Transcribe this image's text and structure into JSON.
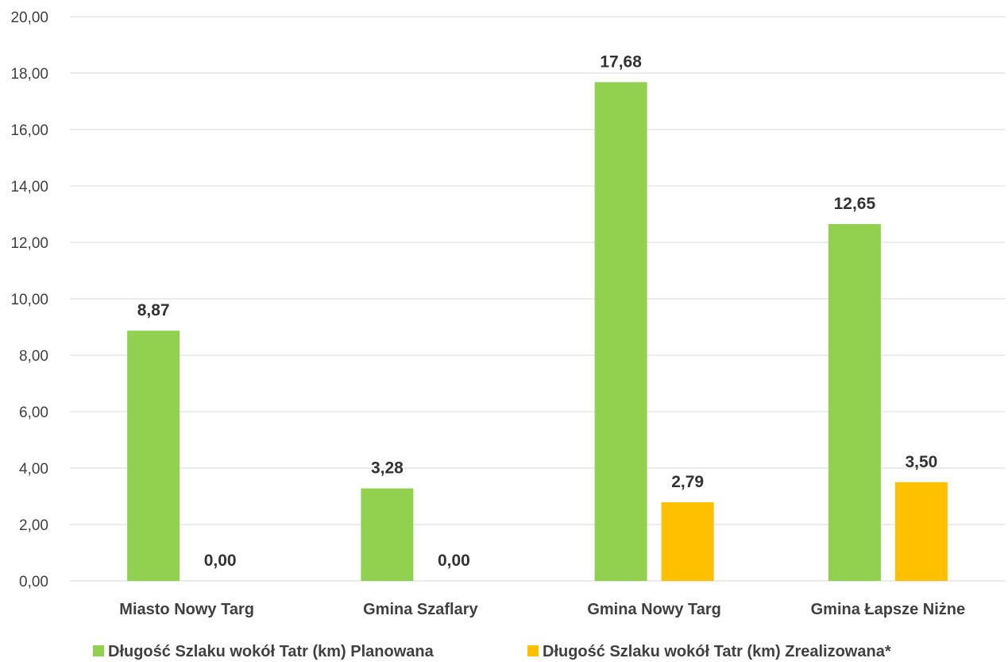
{
  "chart_data": {
    "type": "bar",
    "categories": [
      "Miasto Nowy Targ",
      "Gmina Szaflary",
      "Gmina Nowy Targ",
      "Gmina Łapsze Niżne"
    ],
    "series": [
      {
        "name": "Długość Szlaku wokół Tatr (km) Planowana",
        "color": "#92d050",
        "values": [
          8.87,
          3.28,
          17.68,
          12.65
        ],
        "labels": [
          "8,87",
          "3,28",
          "17,68",
          "12,65"
        ]
      },
      {
        "name": "Długość Szlaku wokół Tatr (km) Zrealizowana*",
        "color": "#ffc000",
        "values": [
          0.0,
          0.0,
          2.79,
          3.5
        ],
        "labels": [
          "0,00",
          "0,00",
          "2,79",
          "3,50"
        ]
      }
    ],
    "ylim": [
      0,
      20
    ],
    "yticks": [
      "0,00",
      "2,00",
      "4,00",
      "6,00",
      "8,00",
      "10,00",
      "12,00",
      "14,00",
      "16,00",
      "18,00",
      "20,00"
    ],
    "grid": true,
    "gridColor": "#d9d9d9",
    "legend_position": "bottom",
    "title": "",
    "xlabel": "",
    "ylabel": ""
  }
}
